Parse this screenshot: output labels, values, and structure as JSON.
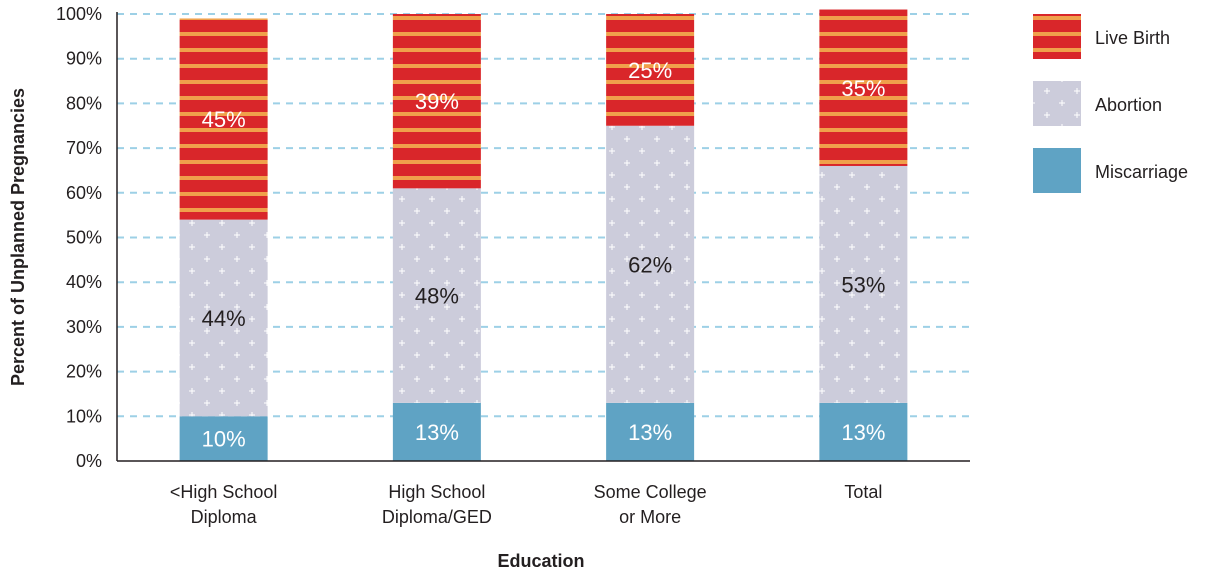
{
  "chart_data": {
    "type": "bar",
    "stacked": true,
    "categories": [
      [
        "<High School",
        "Diploma"
      ],
      [
        "High School",
        "Diploma/GED"
      ],
      [
        "Some College",
        "or More"
      ],
      [
        "Total"
      ]
    ],
    "series": [
      {
        "name": "Miscarriage",
        "values": [
          10,
          13,
          13,
          13
        ],
        "labels": [
          "10%",
          "13%",
          "13%",
          "13%"
        ],
        "color": "#5fa3c4",
        "label_color": "#ffffff"
      },
      {
        "name": "Abortion",
        "values": [
          44,
          48,
          62,
          53
        ],
        "labels": [
          "44%",
          "48%",
          "62%",
          "53%"
        ],
        "color": "#ccccdb",
        "label_color": "#231f20"
      },
      {
        "name": "Live Birth",
        "values": [
          45,
          39,
          25,
          35
        ],
        "labels": [
          "45%",
          "39%",
          "25%",
          "35%"
        ],
        "color": "#d9262a",
        "stripe_color": "#f0a04b",
        "label_color": "#ffffff"
      }
    ],
    "legend_order": [
      "Live Birth",
      "Abortion",
      "Miscarriage"
    ],
    "legend_position": "right",
    "xlabel": "Education",
    "ylabel": "Percent of Unplanned Pregnancies",
    "ylim": [
      0,
      100
    ],
    "yticks": [
      "0%",
      "10%",
      "20%",
      "30%",
      "40%",
      "50%",
      "60%",
      "70%",
      "80%",
      "90%",
      "100%"
    ],
    "grid": "horizontal dashed",
    "grid_color": "#9dd0e6"
  }
}
